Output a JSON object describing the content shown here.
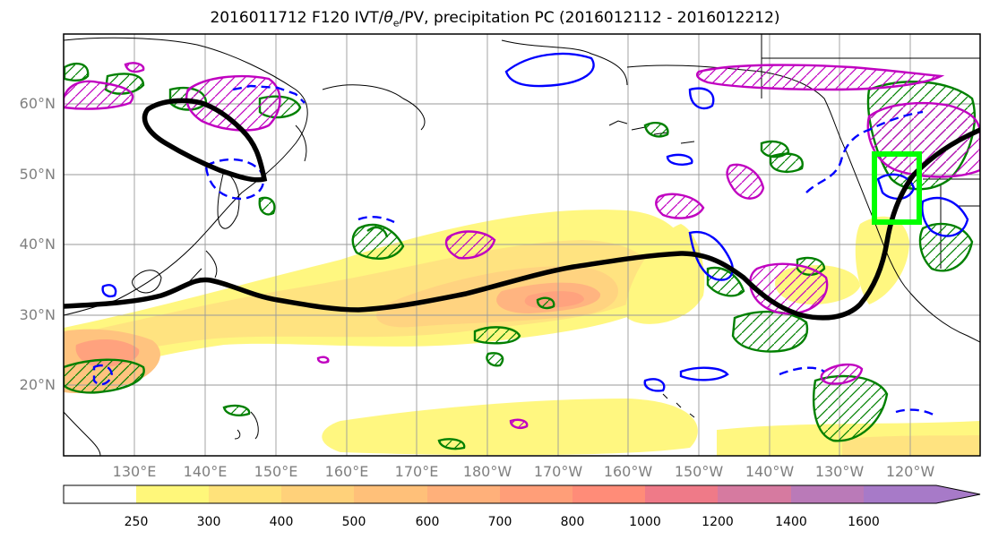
{
  "title": {
    "main": "2016011712 F120 IVT/",
    "theta": "θ",
    "theta_sub": "e",
    "rest": "/PV, precipitation PC (2016012112 - 2016012212)"
  },
  "map": {
    "lat_range": [
      10,
      70
    ],
    "lon_range": [
      120,
      250
    ],
    "lat_ticks": [
      "60°N",
      "50°N",
      "40°N",
      "30°N",
      "20°N"
    ],
    "lon_ticks": [
      "130°E",
      "140°E",
      "150°E",
      "160°E",
      "170°E",
      "180°W",
      "170°W",
      "160°W",
      "150°W",
      "140°W",
      "130°W",
      "120°W"
    ]
  },
  "colorbar": {
    "levels": [
      "250",
      "300",
      "400",
      "500",
      "600",
      "700",
      "800",
      "1000",
      "1200",
      "1400",
      "1600"
    ],
    "colors": [
      "#ffffff",
      "#fff77a",
      "#ffe27a",
      "#ffd17a",
      "#ffc079",
      "#ffb07a",
      "#ff9e78",
      "#ff8c78",
      "#ef7a88",
      "#d67aa0",
      "#ba7ab8",
      "#a77ac8"
    ]
  },
  "colors": {
    "pv_line": "#000000",
    "green_contour": "#008000",
    "blue_contour": "#0000ff",
    "magenta_contour": "#c000c0",
    "target_box": "#00ff00"
  }
}
